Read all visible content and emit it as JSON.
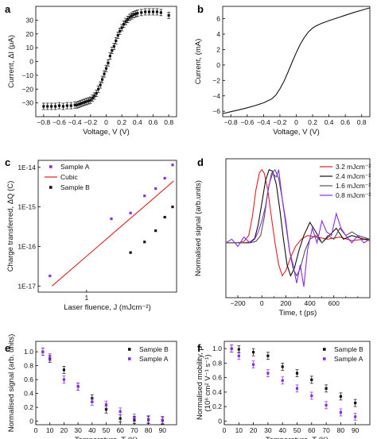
{
  "panel_letters": {
    "a": "a",
    "b": "b",
    "c": "c",
    "d": "d",
    "e": "e",
    "f": "f"
  },
  "colors": {
    "black": "#111111",
    "purple": "#8a2be2",
    "red": "#e02020",
    "dark_gray": "#333333",
    "gray": "#555555"
  },
  "chart_data": [
    {
      "panel": "a",
      "type": "scatter",
      "xlabel": "Voltage, V (V)",
      "ylabel": "Current, ΔI (μA)",
      "xlim": [
        -0.9,
        0.9
      ],
      "ylim": [
        -40,
        40
      ],
      "xticks": [
        -0.8,
        -0.6,
        -0.4,
        -0.2,
        0,
        0.2,
        0.4,
        0.6,
        0.8
      ],
      "xtick_labels": [
        "−0.8",
        "−0.6",
        "−0.4",
        "−0.2",
        "0",
        "0.2",
        "0.4",
        "0.6",
        "0.8"
      ],
      "yticks": [
        -30,
        -20,
        -10,
        0,
        10,
        20,
        30
      ],
      "ytick_labels": [
        "−30",
        "−20",
        "−10",
        "0",
        "10",
        "20",
        "30"
      ],
      "series": [
        {
          "color": "#111111",
          "marker": "square",
          "errorbars": true,
          "x": [
            -0.8,
            -0.75,
            -0.7,
            -0.65,
            -0.6,
            -0.55,
            -0.5,
            -0.45,
            -0.4,
            -0.375,
            -0.35,
            -0.325,
            -0.3,
            -0.275,
            -0.25,
            -0.225,
            -0.2,
            -0.175,
            -0.15,
            -0.125,
            -0.1,
            -0.075,
            -0.05,
            -0.025,
            0,
            0.025,
            0.05,
            0.075,
            0.1,
            0.125,
            0.15,
            0.175,
            0.2,
            0.225,
            0.25,
            0.275,
            0.3,
            0.325,
            0.35,
            0.375,
            0.4,
            0.45,
            0.5,
            0.55,
            0.6,
            0.65,
            0.7,
            0.8
          ],
          "y": [
            -32.5,
            -32.5,
            -32.5,
            -32.5,
            -32,
            -32.5,
            -32,
            -32,
            -31.5,
            -31.5,
            -31,
            -30.5,
            -30,
            -29.5,
            -29,
            -28.5,
            -28,
            -26.5,
            -25,
            -23,
            -20,
            -17,
            -13,
            -9,
            -5,
            -1,
            4,
            8,
            11,
            15,
            19,
            22,
            24.5,
            27,
            29,
            30.5,
            32,
            33,
            34,
            34.5,
            35,
            35.5,
            36,
            36,
            36,
            36,
            35.5,
            33.5
          ]
        }
      ]
    },
    {
      "panel": "b",
      "type": "line",
      "xlabel": "Voltage, V (V)",
      "ylabel": "Current, (mA)",
      "xlim": [
        -0.9,
        0.9
      ],
      "ylim": [
        -6.7,
        7.6
      ],
      "xticks": [
        -0.8,
        -0.6,
        -0.4,
        -0.2,
        0,
        0.2,
        0.4,
        0.6,
        0.8
      ],
      "xtick_labels": [
        "−0.8",
        "−0.6",
        "−0.4",
        "−0.2",
        "0",
        "0.2",
        "0.4",
        "0.6",
        "0.8"
      ],
      "yticks": [
        -6,
        -4,
        -2,
        0,
        2,
        4,
        6
      ],
      "ytick_labels": [
        "−6",
        "−4",
        "−2",
        "0",
        "2",
        "4",
        "6"
      ],
      "series": [
        {
          "color": "#111111",
          "x": [
            -0.9,
            -0.8,
            -0.7,
            -0.6,
            -0.5,
            -0.4,
            -0.3,
            -0.25,
            -0.2,
            -0.15,
            -0.1,
            -0.05,
            0,
            0.05,
            0.1,
            0.15,
            0.2,
            0.25,
            0.3,
            0.4,
            0.5,
            0.6,
            0.7,
            0.8,
            0.9
          ],
          "y": [
            -6.3,
            -6.05,
            -5.8,
            -5.55,
            -5.25,
            -4.9,
            -4.4,
            -3.9,
            -3.1,
            -2.1,
            -0.9,
            0.4,
            1.6,
            2.7,
            3.6,
            4.3,
            4.8,
            5.1,
            5.35,
            5.75,
            6.1,
            6.45,
            6.8,
            7.1,
            7.4
          ]
        }
      ]
    },
    {
      "panel": "c",
      "type": "scatter",
      "xlabel": "Laser fluence, J (mJcm⁻²)",
      "ylabel": "Charge transferred, ΔQ (C)",
      "xscale": "log",
      "yscale": "log",
      "xlim": [
        0.4,
        5.5
      ],
      "ylim": [
        7e-18,
        1.5e-14
      ],
      "xticks": [
        1
      ],
      "xtick_labels": [
        "1"
      ],
      "yticks": [
        1e-17,
        1e-16,
        1e-15,
        1e-14
      ],
      "ytick_labels": [
        "1E-17",
        "1E-16",
        "1E-15",
        "1E-14"
      ],
      "legend": "top-left",
      "series": [
        {
          "name": "Sample A",
          "color": "#8a2be2",
          "marker": "square",
          "x": [
            0.5,
            1.6,
            2.3,
            3.0,
            3.7,
            4.4,
            5.1
          ],
          "y": [
            1.8e-17,
            5e-16,
            7e-16,
            1.9e-15,
            2.9e-15,
            5.3e-15,
            1.15e-14
          ]
        },
        {
          "name": "Cubic",
          "color": "#e02020",
          "style": "line",
          "x": [
            0.52,
            5.2
          ],
          "y": [
            1e-17,
            4.5e-15
          ]
        },
        {
          "name": "Sample B",
          "color": "#111111",
          "marker": "square",
          "x": [
            2.3,
            3.0,
            3.7,
            4.4,
            5.1
          ],
          "y": [
            7e-17,
            1.3e-16,
            2.5e-16,
            5.5e-16,
            1e-15
          ]
        }
      ]
    },
    {
      "panel": "d",
      "type": "line",
      "xlabel": "Time, t (ps)",
      "ylabel": "Normalised signal (arb.units)",
      "xlim": [
        -300,
        900
      ],
      "ylim": [
        -0.75,
        1.15
      ],
      "xticks": [
        -200,
        0,
        200,
        400,
        600
      ],
      "xtick_labels": [
        "−200",
        "0",
        "200",
        "400",
        "600"
      ],
      "legend": "top-right",
      "series": [
        {
          "name": "3.2 mJcm⁻²",
          "color": "#e02020",
          "x": [
            -300,
            -200,
            -150,
            -110,
            -80,
            -50,
            -20,
            0,
            20,
            50,
            80,
            110,
            140,
            170,
            200,
            240,
            280,
            330,
            380,
            450,
            550,
            650,
            750,
            850,
            900
          ],
          "y": [
            0,
            0,
            0.02,
            0.1,
            0.35,
            0.72,
            0.96,
            1.0,
            0.95,
            0.72,
            0.35,
            0.0,
            -0.3,
            -0.45,
            -0.38,
            -0.2,
            -0.05,
            0.05,
            0.1,
            0.08,
            0.05,
            0.08,
            0.03,
            0.05,
            0.03
          ]
        },
        {
          "name": "2.4 mJcm⁻²",
          "color": "#111111",
          "x": [
            -300,
            -150,
            -100,
            -60,
            -30,
            0,
            30,
            60,
            90,
            120,
            150,
            180,
            210,
            240,
            270,
            310,
            350,
            400,
            450,
            500,
            550,
            620,
            680,
            750,
            850,
            900
          ],
          "y": [
            0,
            0,
            0.01,
            0.06,
            0.25,
            0.55,
            0.85,
            1.0,
            0.98,
            0.8,
            0.45,
            0.05,
            -0.3,
            -0.45,
            -0.35,
            -0.1,
            0.1,
            0.28,
            0.15,
            0.0,
            0.08,
            0.2,
            0.05,
            0.1,
            0.05,
            0.05
          ]
        },
        {
          "name": "1.6 mJcm⁻²",
          "color": "#555555",
          "x": [
            -300,
            -100,
            -50,
            -10,
            20,
            50,
            80,
            110,
            140,
            170,
            200,
            230,
            260,
            290,
            320,
            360,
            400,
            450,
            500,
            550,
            600,
            650,
            700,
            750,
            800,
            900
          ],
          "y": [
            0,
            0,
            0.02,
            0.1,
            0.35,
            0.7,
            0.95,
            1.0,
            0.88,
            0.6,
            0.25,
            -0.1,
            -0.35,
            -0.45,
            -0.35,
            -0.1,
            0.05,
            0.1,
            0.0,
            0.1,
            0.05,
            0.2,
            0.1,
            0.15,
            0.1,
            0.05
          ]
        },
        {
          "name": "0.8 mJcm⁻²",
          "color": "#8a2be2",
          "x": [
            -300,
            -250,
            -200,
            -150,
            -100,
            -60,
            -30,
            0,
            30,
            60,
            90,
            120,
            140,
            170,
            200,
            230,
            260,
            290,
            320,
            350,
            380,
            420,
            460,
            500,
            540,
            580,
            620,
            660,
            700,
            750,
            800,
            850,
            900
          ],
          "y": [
            0.0,
            0.05,
            -0.05,
            0.08,
            0.0,
            0.05,
            0.15,
            0.3,
            0.5,
            0.8,
            0.95,
            0.9,
            1.0,
            0.6,
            0.3,
            -0.1,
            -0.3,
            -0.55,
            -0.3,
            -0.6,
            -0.1,
            0.2,
            0.0,
            0.3,
            0.15,
            0.1,
            0.4,
            0.2,
            0.1,
            0.0,
            0.1,
            0.0,
            0.05
          ]
        }
      ]
    },
    {
      "panel": "e",
      "type": "scatter",
      "xlabel": "Temperature, T (K)",
      "ylabel": "Normalised signal (arb. units)",
      "xlim": [
        0,
        100
      ],
      "ylim": [
        -0.05,
        1.15
      ],
      "xticks": [
        0,
        10,
        20,
        30,
        40,
        50,
        60,
        70,
        80,
        90
      ],
      "xtick_labels": [
        "0",
        "10",
        "20",
        "30",
        "40",
        "50",
        "60",
        "70",
        "80",
        "90"
      ],
      "yticks": [
        0,
        0.2,
        0.4,
        0.6,
        0.8,
        1.0
      ],
      "ytick_labels": [
        "0",
        "0.2",
        "0.4",
        "0.6",
        "0.8",
        "1.0"
      ],
      "legend": "top-right",
      "series": [
        {
          "name": "Sample B",
          "color": "#111111",
          "marker": "square",
          "errorbars": true,
          "x": [
            5,
            10,
            20,
            30,
            40,
            50,
            60,
            70,
            80,
            90
          ],
          "y": [
            1.0,
            0.9,
            0.74,
            0.5,
            0.33,
            0.17,
            0.04,
            0.02,
            0.02,
            0.01
          ]
        },
        {
          "name": "Sample A",
          "color": "#8a2be2",
          "marker": "square",
          "errorbars": true,
          "x": [
            5,
            10,
            20,
            30,
            40,
            50,
            60,
            70,
            80,
            90
          ],
          "y": [
            1.0,
            0.92,
            0.6,
            0.5,
            0.28,
            0.24,
            0.14,
            0.05,
            0.03,
            0.02
          ]
        }
      ]
    },
    {
      "panel": "f",
      "type": "scatter",
      "xlabel": "Temperature, T (K)",
      "ylabel": "Normalised mobility, μ",
      "ylabel2": "(10⁶ cm² V⁻¹ s⁻¹)",
      "xlim": [
        0,
        100
      ],
      "ylim": [
        -0.05,
        1.1
      ],
      "xticks": [
        0,
        10,
        20,
        30,
        40,
        50,
        60,
        70,
        80,
        90
      ],
      "xtick_labels": [
        "0",
        "10",
        "20",
        "30",
        "40",
        "50",
        "60",
        "70",
        "80",
        "90"
      ],
      "yticks": [
        0,
        0.2,
        0.4,
        0.6,
        0.8,
        1.0
      ],
      "ytick_labels": [
        "0",
        "0.2",
        "0.4",
        "0.6",
        "0.8",
        "1.0"
      ],
      "legend": "top-right",
      "series": [
        {
          "name": "Sample B",
          "color": "#111111",
          "marker": "square",
          "errorbars": true,
          "x": [
            5,
            10,
            20,
            30,
            40,
            50,
            60,
            70,
            80,
            90
          ],
          "y": [
            1.0,
            0.99,
            0.95,
            0.9,
            0.75,
            0.66,
            0.57,
            0.45,
            0.34,
            0.25
          ]
        },
        {
          "name": "Sample A",
          "color": "#8a2be2",
          "marker": "square",
          "errorbars": true,
          "x": [
            5,
            10,
            20,
            30,
            40,
            50,
            60,
            70,
            80,
            90
          ],
          "y": [
            1.0,
            0.9,
            0.78,
            0.66,
            0.56,
            0.45,
            0.35,
            0.22,
            0.12,
            0.06
          ]
        }
      ]
    }
  ]
}
